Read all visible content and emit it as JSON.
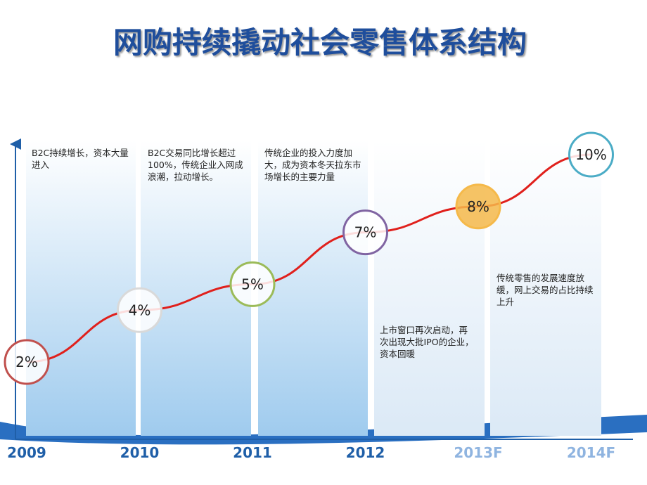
{
  "chart_data": {
    "type": "line",
    "title": "网购持续撬动社会零售体系结构",
    "categories": [
      "2009",
      "2010",
      "2011",
      "2012",
      "2013F",
      "2014F"
    ],
    "series": [
      {
        "color": "#e0201c",
        "values": [
          2,
          4,
          5,
          7,
          8,
          10
        ],
        "value_labels": [
          "2%",
          "4%",
          "5%",
          "7%",
          "8%",
          "10%"
        ],
        "point_colors": [
          "#c0504d",
          "#d9d9d9",
          "#9bbb59",
          "#8064a2",
          "#f5b94a",
          "#4bacc6"
        ]
      }
    ],
    "annotations": [
      "B2C持续增长，资本大量进入",
      "B2C交易同比增长超过100%，传统企业入网成浪潮，拉动增长。",
      "传统企业的投入力度加大，成为资本冬天拉东市场增长的主要力量",
      "上市窗口再次启动，再次出现大批IPO的企业，资本回暖",
      "传统零售的发展速度放缓，网上交易的占比持续上升"
    ]
  }
}
